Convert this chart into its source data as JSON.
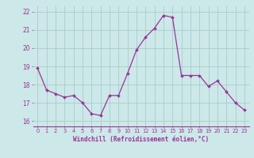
{
  "x": [
    0,
    1,
    2,
    3,
    4,
    5,
    6,
    7,
    8,
    9,
    10,
    11,
    12,
    13,
    14,
    15,
    16,
    17,
    18,
    19,
    20,
    21,
    22,
    23
  ],
  "y": [
    18.9,
    17.7,
    17.5,
    17.3,
    17.4,
    17.0,
    16.4,
    16.3,
    17.4,
    17.4,
    18.6,
    19.9,
    20.6,
    21.1,
    21.8,
    21.7,
    18.5,
    18.5,
    18.5,
    17.9,
    18.2,
    17.6,
    17.0,
    16.6
  ],
  "line_color": "#993399",
  "marker_color": "#993399",
  "bg_color": "#cce8e8",
  "grid_color": "#aacccc",
  "xlabel": "Windchill (Refroidissement éolien,°C)",
  "xlabel_color": "#993399",
  "tick_color": "#993399",
  "ylim": [
    15.7,
    22.3
  ],
  "xlim": [
    -0.5,
    23.5
  ],
  "yticks": [
    16,
    17,
    18,
    19,
    20,
    21,
    22
  ],
  "xticks": [
    0,
    1,
    2,
    3,
    4,
    5,
    6,
    7,
    8,
    9,
    10,
    11,
    12,
    13,
    14,
    15,
    16,
    17,
    18,
    19,
    20,
    21,
    22,
    23
  ],
  "figsize": [
    3.2,
    2.0
  ],
  "dpi": 100
}
